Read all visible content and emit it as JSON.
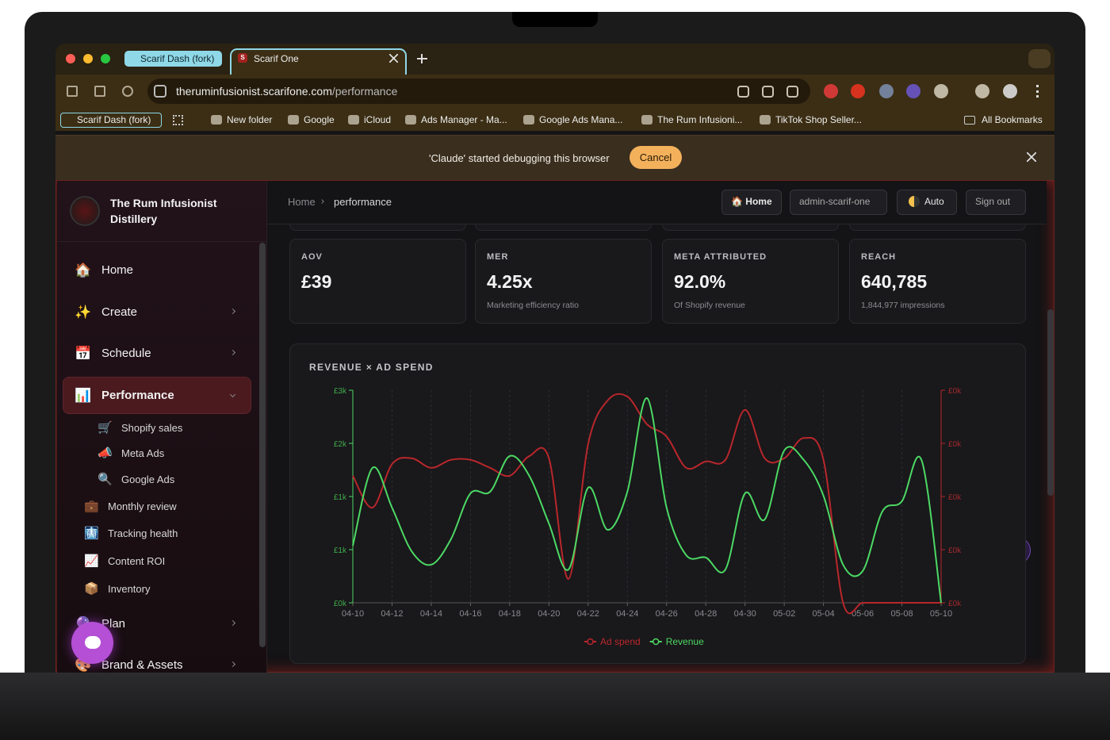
{
  "browser": {
    "tabs": [
      "Scarif Dash (fork)",
      "Scarif One"
    ],
    "favicon": "S",
    "url_host": "theruminfusionist.scarifone.com",
    "url_path": "/performance",
    "bookmarks": [
      "Scarif Dash (fork)",
      "New folder",
      "Google",
      "iCloud",
      "Ads Manager - Ma...",
      "Google Ads Mana...",
      "The Rum Infusioni...",
      "TikTok Shop Seller..."
    ],
    "all_bookmarks": "All Bookmarks"
  },
  "banner": {
    "text": "'Claude' started debugging this browser",
    "button": "Cancel"
  },
  "sidebar": {
    "brand": "The Rum Infusionist Distillery",
    "nav": [
      {
        "icon": "🏠",
        "label": "Home"
      },
      {
        "icon": "✨",
        "label": "Create"
      },
      {
        "icon": "📅",
        "label": "Schedule"
      },
      {
        "icon": "📊",
        "label": "Performance"
      },
      {
        "icon": "🛒",
        "label": "Shopify sales"
      },
      {
        "icon": "📣",
        "label": "Meta Ads"
      },
      {
        "icon": "🔍",
        "label": "Google Ads"
      },
      {
        "icon": "💼",
        "label": "Monthly review"
      },
      {
        "icon": "🩻",
        "label": "Tracking health"
      },
      {
        "icon": "📈",
        "label": "Content ROI"
      },
      {
        "icon": "📦",
        "label": "Inventory"
      },
      {
        "icon": "🔮",
        "label": "Plan"
      },
      {
        "icon": "🎨",
        "label": "Brand & Assets"
      }
    ]
  },
  "header": {
    "breadcrumb": [
      "Home",
      "performance"
    ],
    "buttons": [
      "🏠 Home",
      "admin-scarif-one",
      "Auto",
      "Sign out"
    ]
  },
  "kpis": [
    {
      "label": "AOV",
      "value": "£39",
      "note": ""
    },
    {
      "label": "MER",
      "value": "4.25x",
      "note": "Marketing efficiency ratio"
    },
    {
      "label": "META ATTRIBUTED",
      "value": "92.0%",
      "note": "Of Shopify revenue"
    },
    {
      "label": "REACH",
      "value": "640,785",
      "note": "1,844,977 impressions"
    }
  ],
  "chart_data": {
    "type": "line",
    "title": "REVENUE × AD SPEND",
    "categories": [
      "04-10",
      null,
      "04-12",
      null,
      "04-14",
      null,
      "04-16",
      null,
      "04-18",
      null,
      "04-20",
      null,
      "04-22",
      null,
      "04-24",
      null,
      "04-26",
      null,
      "04-28",
      null,
      "04-30",
      null,
      "05-02",
      null,
      "05-04",
      null,
      "05-06",
      null,
      "05-08",
      null,
      "05-10"
    ],
    "series": [
      {
        "name": "Ad spend",
        "color": "#b8272b",
        "axis": "y2",
        "values": [
          239,
          179,
          261,
          272,
          254,
          269,
          269,
          254,
          239,
          276,
          272,
          45,
          299,
          381,
          388,
          336,
          313,
          254,
          266,
          269,
          363,
          272,
          272,
          310,
          269,
          0,
          0,
          0,
          0,
          0,
          0
        ]
      },
      {
        "name": "Revenue",
        "color": "#4cd964",
        "values": [
          672,
          1586,
          1119,
          606,
          448,
          746,
          1287,
          1306,
          1726,
          1493,
          933,
          392,
          1353,
          858,
          1306,
          2407,
          1119,
          560,
          532,
          392,
          1287,
          979,
          1791,
          1679,
          1259,
          448,
          373,
          1073,
          1194,
          1679,
          0
        ]
      }
    ],
    "ylim": [
      0,
      2500
    ],
    "yticks": [
      {
        "value": 0,
        "label": "£0k"
      },
      {
        "value": 625,
        "label": "£1k"
      },
      {
        "value": 1250,
        "label": "£1k"
      },
      {
        "value": 1875,
        "label": "£2k"
      },
      {
        "value": 2500,
        "label": "£3k"
      }
    ],
    "y2lim": [
      0,
      400
    ],
    "y2ticks": [
      {
        "value": 0,
        "label": "£0k"
      },
      {
        "value": 100,
        "label": "£0k"
      },
      {
        "value": 200,
        "label": "£0k"
      },
      {
        "value": 300,
        "label": "£0k"
      },
      {
        "value": 400,
        "label": "£0k"
      }
    ],
    "grid": true,
    "legend": "bottom"
  }
}
